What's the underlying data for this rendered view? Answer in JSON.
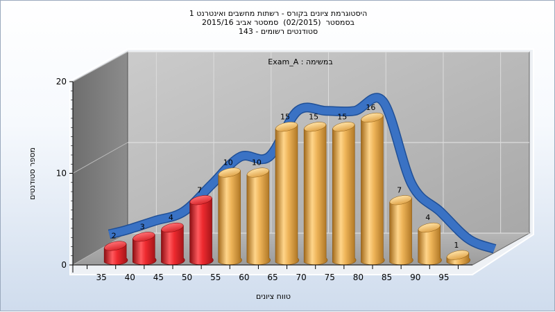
{
  "title_lines": [
    "היסטוגרמת ציונים בקורס - רשתות מחשבים ואינטרנט 1",
    "בסמסטר  (02/2015)  סמסטר אביב 2015/16",
    "143 - סטודנטים רשומים"
  ],
  "chart_data": {
    "type": "bar",
    "annotation": "Exam_A : במשימה",
    "xlabel": "טווח ציונים",
    "ylabel": "מספר סטודנטים",
    "ylim": [
      0,
      20
    ],
    "yticks": [
      "0",
      "10",
      "20"
    ],
    "categories": [
      "35",
      "40",
      "45",
      "50",
      "55",
      "60",
      "65",
      "70",
      "75",
      "80",
      "85",
      "90",
      "95"
    ],
    "values": [
      2,
      3,
      4,
      7,
      10,
      10,
      15,
      15,
      15,
      16,
      7,
      4,
      1
    ],
    "bar_colors": [
      "#e8242a",
      "#e8242a",
      "#e8242a",
      "#e8242a",
      "#e5a640",
      "#e5a640",
      "#e5a640",
      "#e5a640",
      "#e5a640",
      "#e5a640",
      "#e5a640",
      "#e5a640",
      "#e5a640"
    ],
    "trend_color": "#3a72c4",
    "grid": true,
    "legend": "none"
  }
}
